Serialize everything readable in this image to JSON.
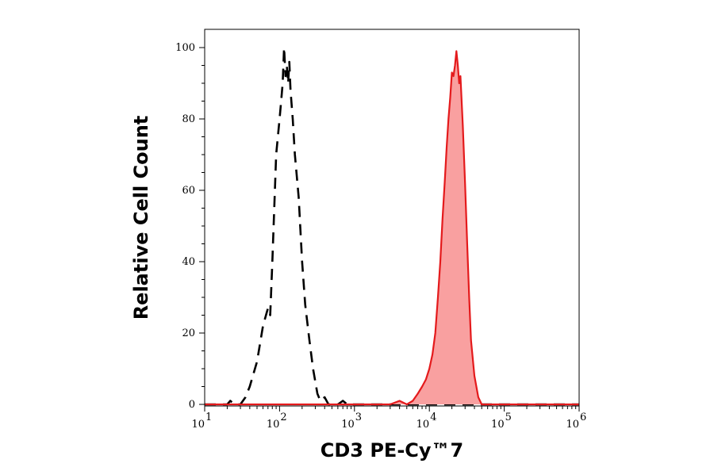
{
  "chart_data": {
    "type": "area",
    "xlabel": "CD3 PE-Cy™7",
    "ylabel": "Relative Cell Count",
    "x_scale": "log",
    "xlim": [
      10,
      1000000
    ],
    "ylim": [
      0,
      100
    ],
    "grid": false,
    "y_ticks": [
      0,
      20,
      40,
      60,
      80,
      100
    ],
    "x_ticks": [
      {
        "base": "10",
        "exp": "1"
      },
      {
        "base": "10",
        "exp": "2"
      },
      {
        "base": "10",
        "exp": "3"
      },
      {
        "base": "10",
        "exp": "4"
      },
      {
        "base": "10",
        "exp": "5"
      },
      {
        "base": "10",
        "exp": "6"
      }
    ],
    "series": [
      {
        "style": "dashed",
        "color": "#000000",
        "filled": false,
        "points": [
          [
            10,
            0
          ],
          [
            20,
            0
          ],
          [
            22,
            1
          ],
          [
            25,
            0
          ],
          [
            30,
            0
          ],
          [
            35,
            2
          ],
          [
            40,
            5
          ],
          [
            50,
            12
          ],
          [
            60,
            22
          ],
          [
            70,
            27
          ],
          [
            75,
            25
          ],
          [
            80,
            40
          ],
          [
            85,
            55
          ],
          [
            90,
            70
          ],
          [
            100,
            80
          ],
          [
            105,
            85
          ],
          [
            110,
            90
          ],
          [
            115,
            100
          ],
          [
            120,
            92
          ],
          [
            125,
            95
          ],
          [
            130,
            90
          ],
          [
            135,
            96
          ],
          [
            140,
            88
          ],
          [
            150,
            80
          ],
          [
            160,
            70
          ],
          [
            180,
            58
          ],
          [
            200,
            40
          ],
          [
            220,
            28
          ],
          [
            250,
            18
          ],
          [
            280,
            10
          ],
          [
            320,
            3
          ],
          [
            350,
            1
          ],
          [
            400,
            2
          ],
          [
            450,
            0
          ],
          [
            600,
            0
          ],
          [
            700,
            1
          ],
          [
            800,
            0
          ],
          [
            1000,
            0
          ],
          [
            3000,
            0
          ],
          [
            100000,
            0
          ],
          [
            1000000,
            0
          ]
        ]
      },
      {
        "style": "solid",
        "color": "#e41a1c",
        "fill": "#f9a0a0",
        "filled": true,
        "points": [
          [
            10,
            0
          ],
          [
            3000,
            0
          ],
          [
            4000,
            1
          ],
          [
            5000,
            0
          ],
          [
            6000,
            1
          ],
          [
            7000,
            3
          ],
          [
            8000,
            5
          ],
          [
            9000,
            7
          ],
          [
            10000,
            10
          ],
          [
            11000,
            14
          ],
          [
            12000,
            20
          ],
          [
            13000,
            30
          ],
          [
            14000,
            40
          ],
          [
            15000,
            52
          ],
          [
            16000,
            62
          ],
          [
            17000,
            72
          ],
          [
            18000,
            80
          ],
          [
            19000,
            86
          ],
          [
            20000,
            93
          ],
          [
            21000,
            92
          ],
          [
            22000,
            95
          ],
          [
            23000,
            99
          ],
          [
            24000,
            95
          ],
          [
            25000,
            90
          ],
          [
            26000,
            92
          ],
          [
            27000,
            85
          ],
          [
            28000,
            78
          ],
          [
            30000,
            62
          ],
          [
            32000,
            45
          ],
          [
            34000,
            30
          ],
          [
            36000,
            18
          ],
          [
            40000,
            8
          ],
          [
            45000,
            2
          ],
          [
            50000,
            0
          ],
          [
            100000,
            0
          ],
          [
            1000000,
            0
          ]
        ]
      }
    ]
  }
}
